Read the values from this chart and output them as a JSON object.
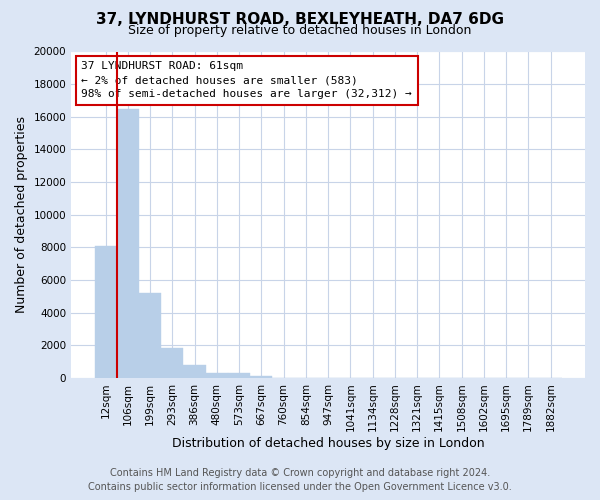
{
  "title": "37, LYNDHURST ROAD, BEXLEYHEATH, DA7 6DG",
  "subtitle": "Size of property relative to detached houses in London",
  "xlabel": "Distribution of detached houses by size in London",
  "ylabel": "Number of detached properties",
  "categories": [
    "12sqm",
    "106sqm",
    "199sqm",
    "293sqm",
    "386sqm",
    "480sqm",
    "573sqm",
    "667sqm",
    "760sqm",
    "854sqm",
    "947sqm",
    "1041sqm",
    "1134sqm",
    "1228sqm",
    "1321sqm",
    "1415sqm",
    "1508sqm",
    "1602sqm",
    "1695sqm",
    "1789sqm",
    "1882sqm"
  ],
  "values": [
    8100,
    16500,
    5200,
    1800,
    800,
    280,
    280,
    100,
    0,
    0,
    0,
    0,
    0,
    0,
    0,
    0,
    0,
    0,
    0,
    0,
    0
  ],
  "bar_color": "#b8cfe8",
  "bar_edge_color": "#b8cfe8",
  "annotation_line1": "37 LYNDHURST ROAD: 61sqm",
  "annotation_line2": "← 2% of detached houses are smaller (583)",
  "annotation_line3": "98% of semi-detached houses are larger (32,312) →",
  "annotation_box_color": "#ffffff",
  "annotation_box_edge_color": "#cc0000",
  "vline_color": "#cc0000",
  "ylim": [
    0,
    20000
  ],
  "yticks": [
    0,
    2000,
    4000,
    6000,
    8000,
    10000,
    12000,
    14000,
    16000,
    18000,
    20000
  ],
  "footer_line1": "Contains HM Land Registry data © Crown copyright and database right 2024.",
  "footer_line2": "Contains public sector information licensed under the Open Government Licence v3.0.",
  "bg_color": "#dce6f5",
  "plot_bg_color": "#ffffff",
  "grid_color": "#c8d4e8",
  "title_fontsize": 11,
  "subtitle_fontsize": 9,
  "axis_label_fontsize": 9,
  "tick_fontsize": 7.5,
  "footer_fontsize": 7,
  "annotation_fontsize": 8
}
